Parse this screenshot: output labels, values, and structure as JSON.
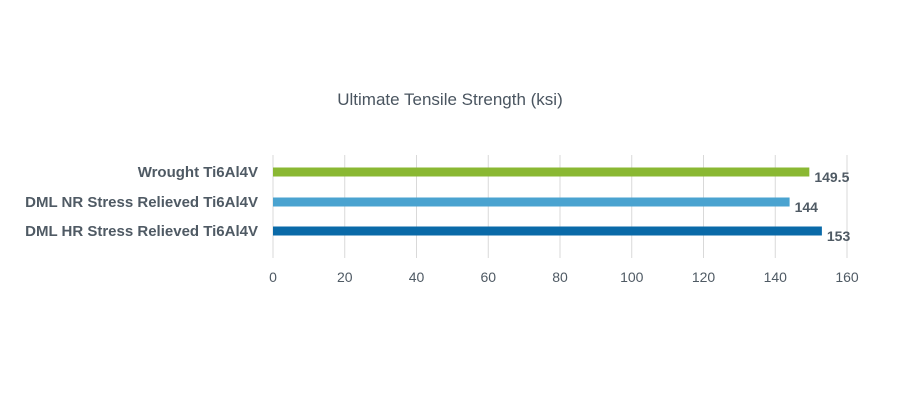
{
  "chart_data": {
    "type": "bar",
    "orientation": "horizontal",
    "title": "Ultimate Tensile Strength (ksi)",
    "categories": [
      "Wrought Ti6Al4V",
      "DML NR Stress Relieved Ti6Al4V",
      "DML HR Stress Relieved Ti6Al4V"
    ],
    "values": [
      149.5,
      144,
      153
    ],
    "value_labels": [
      "149.5",
      "144",
      "153"
    ],
    "colors": [
      "#8ab833",
      "#4aa3d0",
      "#0a6aa8"
    ],
    "xlim": [
      0,
      160
    ],
    "xticks": [
      0,
      20,
      40,
      60,
      80,
      100,
      120,
      140,
      160
    ],
    "xtick_labels": [
      "0",
      "20",
      "40",
      "60",
      "80",
      "100",
      "120",
      "140",
      "160"
    ],
    "grid": true,
    "legend": "none"
  }
}
